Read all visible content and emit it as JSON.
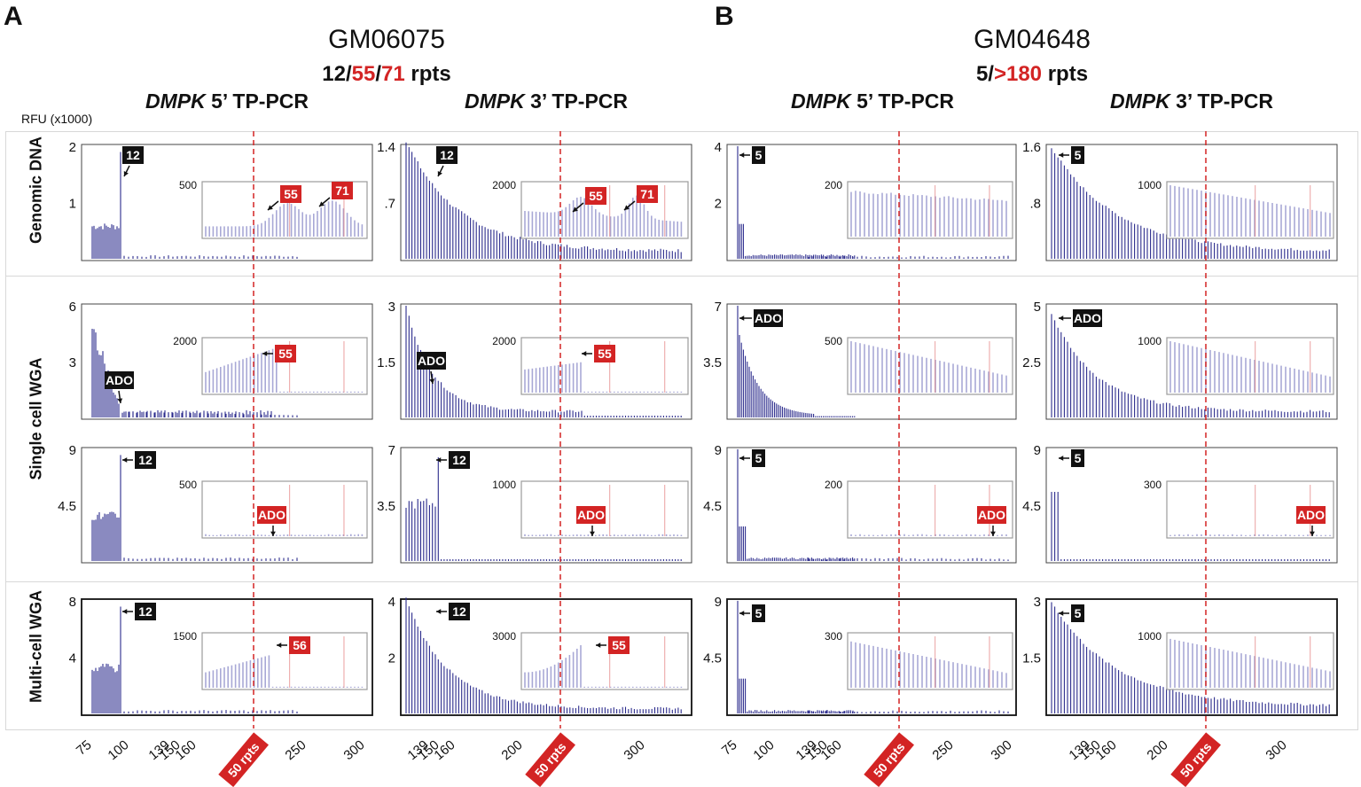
{
  "panels": [
    {
      "letter": "A",
      "cell_line": "GM06075",
      "repeats": {
        "allele1": "12",
        "allele2": "55",
        "allele3": "71",
        "unit": "rpts"
      },
      "assays": [
        {
          "gene": "DMPK",
          "label": "5’ TP-PCR"
        },
        {
          "gene": "DMPK",
          "label": "3’ TP-PCR"
        }
      ]
    },
    {
      "letter": "B",
      "cell_line": "GM04648",
      "repeats": {
        "allele1": "5",
        "allele2": ">180",
        "unit": "rpts"
      },
      "assays": [
        {
          "gene": "DMPK",
          "label": "5’ TP-PCR"
        },
        {
          "gene": "DMPK",
          "label": "3’ TP-PCR"
        }
      ]
    }
  ],
  "y_axis_label": "RFU (x1000)",
  "row_labels": {
    "genomic": "Genomic DNA",
    "single": "Single cell WGA",
    "multi": "Multi-cell WGA"
  },
  "threshold_label": "50 rpts",
  "colors": {
    "trace": "#2b2b8c",
    "inset_trace": "#a8a8d6",
    "red": "#d32424",
    "ref": "#e27c7c"
  },
  "chart_data": {
    "type": "electropherogram",
    "x_tick_sets": {
      "A5": [
        "75",
        "100",
        "139",
        "150",
        "160",
        "250",
        "300"
      ],
      "A3": [
        "139",
        "150",
        "160",
        "200",
        "300"
      ],
      "B5": [
        "75",
        "100",
        "139",
        "150",
        "160",
        "250",
        "300"
      ],
      "B3": [
        "139",
        "150",
        "160",
        "200",
        "300"
      ]
    },
    "plots": [
      {
        "id": "A5-gen",
        "ymax": "2",
        "ymid": "1",
        "inset_y": "500",
        "labels": [
          {
            "t": "12",
            "c": "k"
          },
          {
            "t": "55",
            "c": "r"
          },
          {
            "t": "71",
            "c": "r"
          }
        ]
      },
      {
        "id": "A3-gen",
        "ymax": "1.4",
        "ymid": ".7",
        "inset_y": "2000",
        "labels": [
          {
            "t": "12",
            "c": "k"
          },
          {
            "t": "55",
            "c": "r"
          },
          {
            "t": "71",
            "c": "r"
          }
        ]
      },
      {
        "id": "B5-gen",
        "ymax": "4",
        "ymid": "2",
        "inset_y": "200",
        "labels": [
          {
            "t": "5",
            "c": "k"
          }
        ]
      },
      {
        "id": "B3-gen",
        "ymax": "1.6",
        "ymid": ".8",
        "inset_y": "1000",
        "labels": [
          {
            "t": "5",
            "c": "k"
          }
        ]
      },
      {
        "id": "A5-s1",
        "ymax": "6",
        "ymid": "3",
        "inset_y": "2000",
        "labels": [
          {
            "t": "ADO",
            "c": "k"
          },
          {
            "t": "55",
            "c": "r"
          }
        ]
      },
      {
        "id": "A3-s1",
        "ymax": "3",
        "ymid": "1.5",
        "inset_y": "2000",
        "labels": [
          {
            "t": "ADO",
            "c": "k"
          },
          {
            "t": "55",
            "c": "r"
          }
        ]
      },
      {
        "id": "B5-s1",
        "ymax": "7",
        "ymid": "3.5",
        "inset_y": "500",
        "labels": [
          {
            "t": "ADO",
            "c": "k"
          }
        ]
      },
      {
        "id": "B3-s1",
        "ymax": "5",
        "ymid": "2.5",
        "inset_y": "1000",
        "labels": [
          {
            "t": "ADO",
            "c": "k"
          }
        ]
      },
      {
        "id": "A5-s2",
        "ymax": "9",
        "ymid": "4.5",
        "inset_y": "500",
        "labels": [
          {
            "t": "12",
            "c": "k"
          },
          {
            "t": "ADO",
            "c": "r"
          }
        ]
      },
      {
        "id": "A3-s2",
        "ymax": "7",
        "ymid": "3.5",
        "inset_y": "1000",
        "labels": [
          {
            "t": "12",
            "c": "k"
          },
          {
            "t": "ADO",
            "c": "r"
          }
        ]
      },
      {
        "id": "B5-s2",
        "ymax": "9",
        "ymid": "4.5",
        "inset_y": "200",
        "labels": [
          {
            "t": "5",
            "c": "k"
          },
          {
            "t": "ADO",
            "c": "r"
          }
        ]
      },
      {
        "id": "B3-s2",
        "ymax": "9",
        "ymid": "4.5",
        "inset_y": "300",
        "labels": [
          {
            "t": "5",
            "c": "k"
          },
          {
            "t": "ADO",
            "c": "r"
          }
        ]
      },
      {
        "id": "A5-mc",
        "ymax": "8",
        "ymid": "4",
        "inset_y": "1500",
        "labels": [
          {
            "t": "12",
            "c": "k"
          },
          {
            "t": "56",
            "c": "r"
          }
        ]
      },
      {
        "id": "A3-mc",
        "ymax": "4",
        "ymid": "2",
        "inset_y": "3000",
        "labels": [
          {
            "t": "12",
            "c": "k"
          },
          {
            "t": "55",
            "c": "r"
          }
        ]
      },
      {
        "id": "B5-mc",
        "ymax": "9",
        "ymid": "4.5",
        "inset_y": "300",
        "labels": [
          {
            "t": "5",
            "c": "k"
          }
        ]
      },
      {
        "id": "B3-mc",
        "ymax": "3",
        "ymid": "1.5",
        "inset_y": "1000",
        "labels": [
          {
            "t": "5",
            "c": "k"
          }
        ]
      }
    ]
  }
}
